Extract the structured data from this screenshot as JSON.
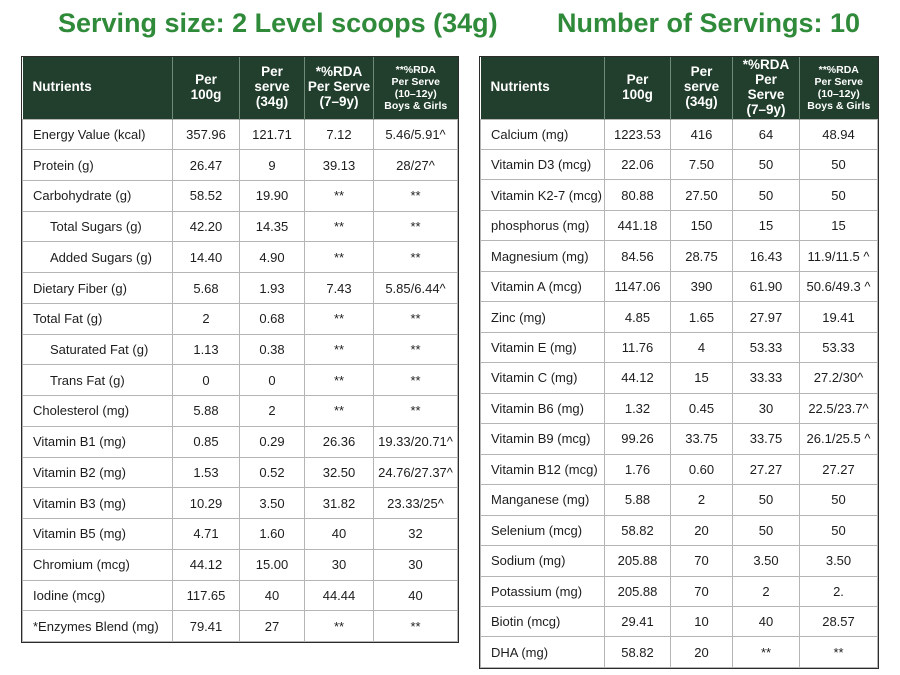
{
  "left_heading": "Serving size: 2 Level scoops (34g)",
  "right_heading": "Number of Servings: 10",
  "headers": {
    "nutrients": "Nutrients",
    "per100_a": "Per",
    "per100_b": "100g",
    "serve_a": "Per",
    "serve_b": "serve",
    "serve_c": "(34g)",
    "rda1_a": "*%RDA",
    "rda1_b": "Per Serve",
    "rda1_c": "(7–9y)",
    "rda2_a": "**%RDA",
    "rda2_b": "Per Serve",
    "rda2_c": "(10–12y)",
    "rda2_d": "Boys & Girls"
  },
  "left_rows": [
    {
      "name": "Energy Value (kcal)",
      "indent": false,
      "c1": "357.96",
      "c2": "121.71",
      "c3": "7.12",
      "c4": "5.46/5.91^"
    },
    {
      "name": "Protein (g)",
      "indent": false,
      "c1": "26.47",
      "c2": "9",
      "c3": "39.13",
      "c4": "28/27^"
    },
    {
      "name": "Carbohydrate (g)",
      "indent": false,
      "c1": "58.52",
      "c2": "19.90",
      "c3": "**",
      "c4": "**"
    },
    {
      "name": "Total Sugars (g)",
      "indent": true,
      "c1": "42.20",
      "c2": "14.35",
      "c3": "**",
      "c4": "**"
    },
    {
      "name": "Added Sugars (g)",
      "indent": true,
      "c1": "14.40",
      "c2": "4.90",
      "c3": "**",
      "c4": "**"
    },
    {
      "name": "Dietary Fiber (g)",
      "indent": false,
      "c1": "5.68",
      "c2": "1.93",
      "c3": "7.43",
      "c4": "5.85/6.44^"
    },
    {
      "name": "Total Fat (g)",
      "indent": false,
      "c1": "2",
      "c2": "0.68",
      "c3": "**",
      "c4": "**"
    },
    {
      "name": "Saturated Fat (g)",
      "indent": true,
      "c1": "1.13",
      "c2": "0.38",
      "c3": "**",
      "c4": "**"
    },
    {
      "name": "Trans Fat (g)",
      "indent": true,
      "c1": "0",
      "c2": "0",
      "c3": "**",
      "c4": "**"
    },
    {
      "name": "Cholesterol (mg)",
      "indent": false,
      "c1": "5.88",
      "c2": "2",
      "c3": "**",
      "c4": "**"
    },
    {
      "name": "Vitamin B1 (mg)",
      "indent": false,
      "c1": "0.85",
      "c2": "0.29",
      "c3": "26.36",
      "c4": "19.33/20.71^"
    },
    {
      "name": "Vitamin B2 (mg)",
      "indent": false,
      "c1": "1.53",
      "c2": "0.52",
      "c3": "32.50",
      "c4": "24.76/27.37^"
    },
    {
      "name": "Vitamin B3 (mg)",
      "indent": false,
      "c1": "10.29",
      "c2": "3.50",
      "c3": "31.82",
      "c4": "23.33/25^"
    },
    {
      "name": "Vitamin B5 (mg)",
      "indent": false,
      "c1": "4.71",
      "c2": "1.60",
      "c3": "40",
      "c4": "32"
    },
    {
      "name": "Chromium (mcg)",
      "indent": false,
      "c1": "44.12",
      "c2": "15.00",
      "c3": "30",
      "c4": "30"
    },
    {
      "name": "Iodine (mcg)",
      "indent": false,
      "c1": "117.65",
      "c2": "40",
      "c3": "44.44",
      "c4": "40"
    },
    {
      "name": "*Enzymes Blend (mg)",
      "indent": false,
      "c1": "79.41",
      "c2": "27",
      "c3": "**",
      "c4": "**"
    }
  ],
  "right_rows": [
    {
      "name": "Calcium (mg)",
      "c1": "1223.53",
      "c2": "416",
      "c3": "64",
      "c4": "48.94"
    },
    {
      "name": "Vitamin D3 (mcg)",
      "c1": "22.06",
      "c2": "7.50",
      "c3": "50",
      "c4": "50"
    },
    {
      "name": "Vitamin K2-7 (mcg)",
      "c1": "80.88",
      "c2": "27.50",
      "c3": "50",
      "c4": "50"
    },
    {
      "name": "phosphorus (mg)",
      "c1": "441.18",
      "c2": "150",
      "c3": "15",
      "c4": "15"
    },
    {
      "name": "Magnesium (mg)",
      "c1": "84.56",
      "c2": "28.75",
      "c3": "16.43",
      "c4": "11.9/11.5 ^"
    },
    {
      "name": "Vitamin A (mcg)",
      "c1": "1147.06",
      "c2": "390",
      "c3": "61.90",
      "c4": "50.6/49.3 ^"
    },
    {
      "name": "Zinc (mg)",
      "c1": "4.85",
      "c2": "1.65",
      "c3": "27.97",
      "c4": "19.41"
    },
    {
      "name": "Vitamin E (mg)",
      "c1": "11.76",
      "c2": "4",
      "c3": "53.33",
      "c4": "53.33"
    },
    {
      "name": "Vitamin C (mg)",
      "c1": "44.12",
      "c2": "15",
      "c3": "33.33",
      "c4": "27.2/30^"
    },
    {
      "name": "Vitamin B6 (mg)",
      "c1": "1.32",
      "c2": "0.45",
      "c3": "30",
      "c4": "22.5/23.7^"
    },
    {
      "name": "Vitamin B9 (mcg)",
      "c1": "99.26",
      "c2": "33.75",
      "c3": "33.75",
      "c4": "26.1/25.5 ^"
    },
    {
      "name": "Vitamin B12 (mcg)",
      "c1": "1.76",
      "c2": "0.60",
      "c3": "27.27",
      "c4": "27.27"
    },
    {
      "name": "Manganese (mg)",
      "c1": "5.88",
      "c2": "2",
      "c3": "50",
      "c4": "50"
    },
    {
      "name": "Selenium (mcg)",
      "c1": "58.82",
      "c2": "20",
      "c3": "50",
      "c4": "50"
    },
    {
      "name": "Sodium (mg)",
      "c1": "205.88",
      "c2": "70",
      "c3": "3.50",
      "c4": "3.50"
    },
    {
      "name": "Potassium (mg)",
      "c1": "205.88",
      "c2": "70",
      "c3": "2",
      "c4": "2."
    },
    {
      "name": "Biotin (mcg)",
      "c1": "29.41",
      "c2": "10",
      "c3": "40",
      "c4": "28.57"
    },
    {
      "name": "DHA (mg)",
      "c1": "58.82",
      "c2": "20",
      "c3": "**",
      "c4": "**"
    }
  ],
  "colors": {
    "heading_green": "#2f8a3a",
    "header_bg": "#213f2c"
  }
}
